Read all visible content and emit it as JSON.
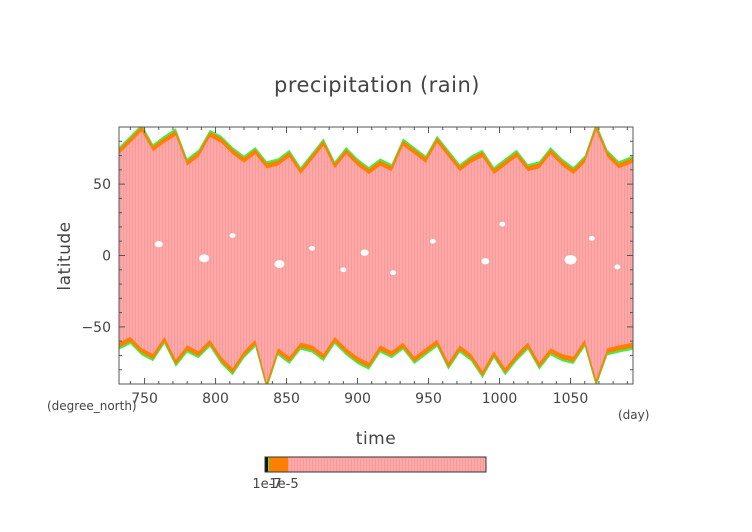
{
  "chart_data": {
    "type": "heatmap",
    "title": "precipitation (rain)",
    "xlabel": "time",
    "ylabel": "latitude",
    "x_units": "(day)",
    "y_units": "(degree_north)",
    "xlim": [
      732,
      1094
    ],
    "ylim": [
      -90,
      90
    ],
    "x_ticks": [
      750,
      800,
      850,
      900,
      950,
      1000,
      1050
    ],
    "y_ticks": [
      -50,
      0,
      50
    ],
    "colorbar": {
      "labels": [
        "1e-7",
        "1e-5"
      ],
      "levels": [
        {
          "name": "lowest",
          "color": "#44ee44"
        },
        {
          "name": "low",
          "color": "#ff8000"
        },
        {
          "name": "high",
          "color": "#ffa8a8"
        }
      ]
    },
    "colors": {
      "rain": "#ffa8a8",
      "fringe_low": "#ff8000",
      "fringe_lowest": "#44ee44",
      "frame": "#555555",
      "text": "#444444"
    },
    "series": [
      {
        "name": "north_edge",
        "x": [
          732,
          740,
          748,
          756,
          764,
          772,
          780,
          788,
          796,
          804,
          812,
          820,
          828,
          836,
          844,
          852,
          860,
          868,
          876,
          884,
          892,
          900,
          908,
          916,
          924,
          932,
          940,
          948,
          956,
          964,
          972,
          980,
          988,
          996,
          1004,
          1012,
          1020,
          1028,
          1036,
          1044,
          1052,
          1060,
          1068,
          1076,
          1084,
          1094
        ],
        "values": [
          72,
          80,
          88,
          74,
          80,
          85,
          64,
          70,
          84,
          80,
          72,
          66,
          72,
          62,
          64,
          70,
          58,
          68,
          78,
          62,
          72,
          64,
          58,
          64,
          60,
          78,
          72,
          66,
          80,
          70,
          60,
          66,
          70,
          58,
          64,
          70,
          60,
          62,
          72,
          64,
          58,
          66,
          89,
          70,
          62,
          66
        ]
      },
      {
        "name": "south_edge",
        "x": [
          732,
          740,
          748,
          756,
          764,
          772,
          780,
          788,
          796,
          804,
          812,
          820,
          828,
          836,
          844,
          852,
          860,
          868,
          876,
          884,
          892,
          900,
          908,
          916,
          924,
          932,
          940,
          948,
          956,
          964,
          972,
          980,
          988,
          996,
          1004,
          1012,
          1020,
          1028,
          1036,
          1044,
          1052,
          1060,
          1068,
          1076,
          1084,
          1094
        ],
        "values": [
          -62,
          -58,
          -66,
          -70,
          -58,
          -74,
          -64,
          -68,
          -60,
          -72,
          -80,
          -68,
          -60,
          -90,
          -66,
          -72,
          -62,
          -64,
          -70,
          -58,
          -66,
          -72,
          -76,
          -64,
          -68,
          -62,
          -72,
          -66,
          -60,
          -76,
          -64,
          -70,
          -82,
          -68,
          -80,
          -70,
          -62,
          -76,
          -66,
          -70,
          -72,
          -60,
          -88,
          -66,
          -64,
          -62
        ]
      }
    ]
  }
}
